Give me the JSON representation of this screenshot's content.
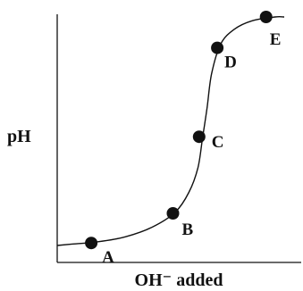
{
  "chart_data": {
    "type": "line",
    "title": "",
    "xlabel": "OH⁻ added",
    "ylabel": "pH",
    "grid": false,
    "x": [
      0,
      0.06,
      0.18,
      0.3,
      0.42,
      0.52,
      0.58,
      0.62,
      0.64,
      0.66,
      0.68,
      0.72,
      0.78,
      0.86,
      0.96,
      1.0
    ],
    "y": [
      0.065,
      0.07,
      0.08,
      0.1,
      0.14,
      0.2,
      0.28,
      0.38,
      0.5,
      0.62,
      0.76,
      0.88,
      0.94,
      0.975,
      0.99,
      0.99
    ],
    "labeled_points": [
      {
        "label": "A",
        "x": 0.15,
        "y": 0.075
      },
      {
        "label": "B",
        "x": 0.51,
        "y": 0.195
      },
      {
        "label": "C",
        "x": 0.625,
        "y": 0.505
      },
      {
        "label": "D",
        "x": 0.705,
        "y": 0.865
      },
      {
        "label": "E",
        "x": 0.92,
        "y": 0.99
      }
    ]
  }
}
